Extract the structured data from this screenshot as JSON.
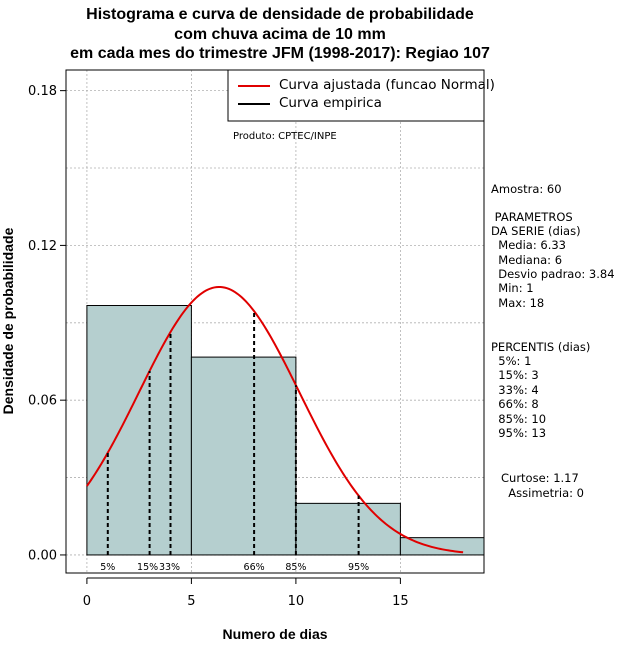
{
  "title_lines": [
    "Histograma e curva de densidade de probabilidade",
    "com chuva acima de 10 mm",
    "em cada mes do trimestre JFM (1998-2017): Regiao 107"
  ],
  "colors": {
    "bar_fill": "#b5cfcf",
    "normal_curve": "#e00000",
    "empirical": "#000000",
    "grid": "#b0b0b0"
  },
  "legend": {
    "entries": [
      {
        "label": "Curva ajustada (funcao Normal)",
        "color": "#e00000"
      },
      {
        "label": "Curva empirica",
        "color": "#000000"
      }
    ],
    "placement": "top-right"
  },
  "credit": "Produto: CPTEC/INPE",
  "stats": {
    "amostra": "Amostra: 60",
    "param_header_1": " PARAMETROS",
    "param_header_2": "DA SERIE (dias)",
    "params": [
      "  Media: 6.33",
      "  Mediana: 6",
      "  Desvio padrao: 3.84",
      "  Min: 1",
      "  Max: 18"
    ],
    "perc_header": "PERCENTIS (dias)",
    "percentis": [
      "  5%: 1",
      "  15%: 3",
      "  33%: 4",
      "  66%: 8",
      "  85%: 10",
      "  95%: 13"
    ],
    "curtose": "Curtose: 1.17",
    "assimetria": "  Assimetria: 0"
  },
  "chart_data": {
    "type": "bar",
    "subtype": "histogram",
    "xlabel": "Numero de dias",
    "ylabel": "Densidade de probabilidade",
    "xlim": [
      -1,
      19
    ],
    "ylim": [
      -0.007,
      0.188
    ],
    "x_ticks": [
      0,
      5,
      10,
      15
    ],
    "x_tick_labels": [
      "0",
      "5",
      "10",
      "15"
    ],
    "y_ticks": [
      0.0,
      0.06,
      0.12,
      0.18
    ],
    "y_tick_labels": [
      "0.00",
      "0.06",
      "0.12",
      "0.18"
    ],
    "grid": true,
    "bins": [
      {
        "start": 0,
        "end": 5,
        "density": 0.0967
      },
      {
        "start": 5,
        "end": 10,
        "density": 0.0767
      },
      {
        "start": 10,
        "end": 15,
        "density": 0.02
      },
      {
        "start": 15,
        "end": 19,
        "density": 0.0067
      }
    ],
    "normal_curve": {
      "mean": 6.33,
      "sd": 3.84,
      "x_start": 0,
      "x_end": 18
    },
    "percentile_lines": [
      {
        "label": "5%",
        "x": 1
      },
      {
        "label": "15%",
        "x": 3
      },
      {
        "label": "33%",
        "x": 4
      },
      {
        "label": "66%",
        "x": 8
      },
      {
        "label": "85%",
        "x": 10
      },
      {
        "label": "95%",
        "x": 13
      }
    ]
  }
}
